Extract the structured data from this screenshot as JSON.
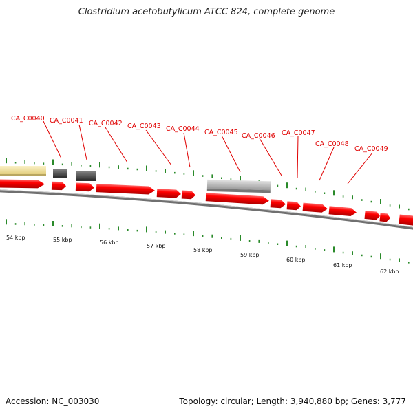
{
  "title": "Clostridium acetobutylicum ATCC 824, complete genome",
  "footer": {
    "accession": "Accession: NC_003030",
    "info": "Topology: circular; Length: 3,940,880 bp; Genes: 3,777"
  },
  "colors": {
    "gene_red": "#ff0000",
    "label_red": "#e00000",
    "tick_green": "#2a8a2a",
    "backbone": "#777777",
    "yellow_feature": "#f3e3a0",
    "dark_gray_feature": "#5a5a5a",
    "light_gray_feature": "#c2c2c2"
  },
  "gene_labels": [
    "CA_C0040",
    "CA_C0041",
    "CA_C0042",
    "CA_C0043",
    "CA_C0044",
    "CA_C0045",
    "CA_C0046",
    "CA_C0047",
    "CA_C0048",
    "CA_C0049"
  ],
  "kbp_labels": [
    "54 kbp",
    "55 kbp",
    "56 kbp",
    "57 kbp",
    "58 kbp",
    "59 kbp",
    "60 kbp",
    "61 kbp",
    "62 kbp"
  ]
}
